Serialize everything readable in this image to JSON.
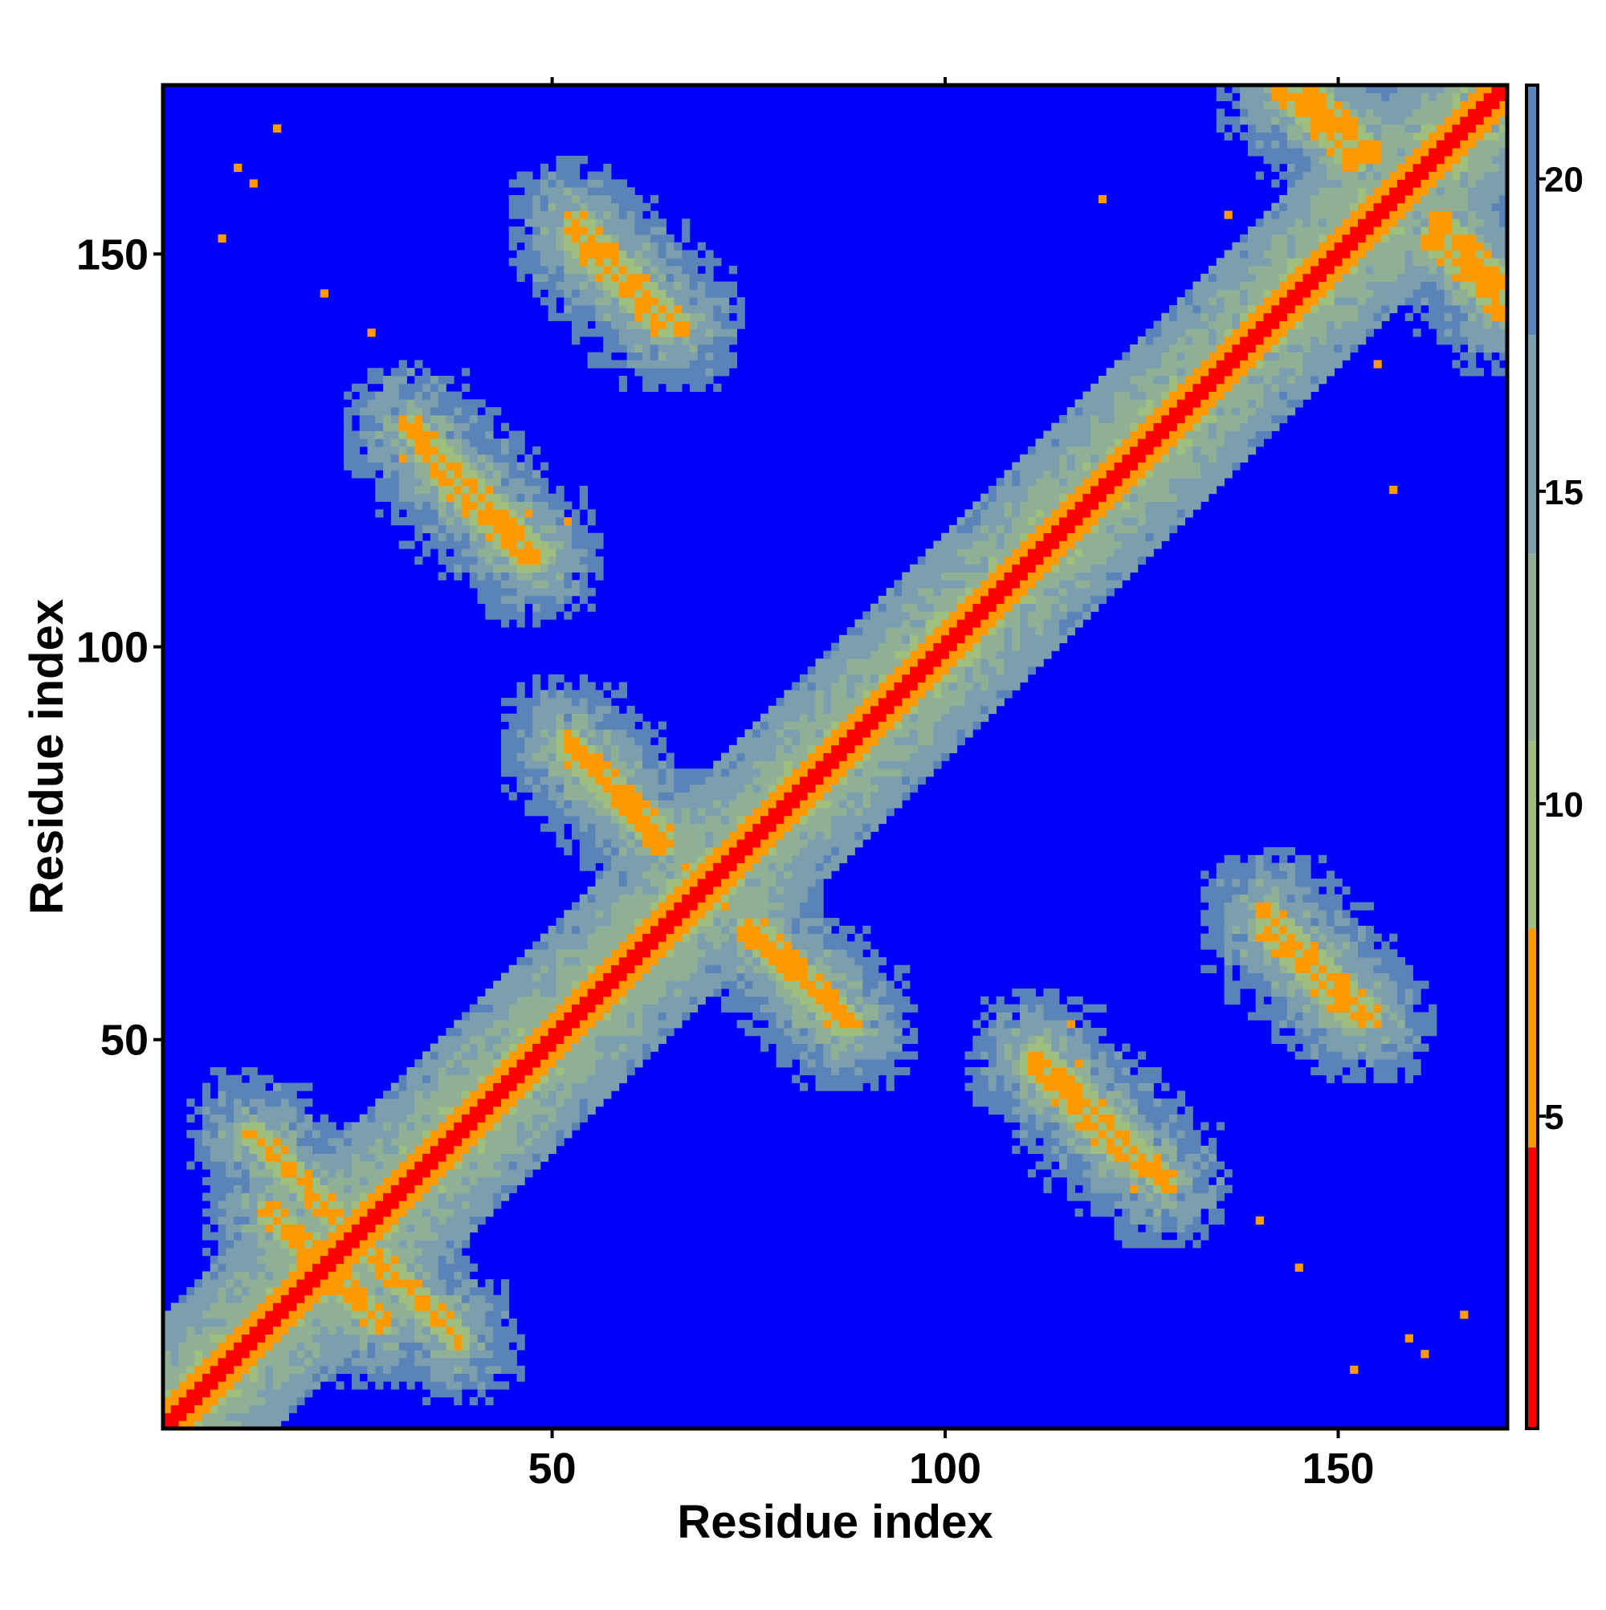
{
  "chart_data": {
    "type": "heatmap",
    "title": "",
    "xlabel": "Residue index",
    "ylabel": "Residue index",
    "n_residues": 171,
    "xlim": [
      1,
      171
    ],
    "ylim": [
      1,
      171
    ],
    "x_ticks": [
      50,
      100,
      150
    ],
    "y_ticks": [
      50,
      100,
      150
    ],
    "colorbar": {
      "range": [
        0,
        21.5
      ],
      "ticks": [
        5,
        10,
        15,
        20
      ],
      "bands": [
        {
          "from": 0,
          "to": 4.5,
          "color": "#ff0000"
        },
        {
          "from": 4.5,
          "to": 8,
          "color": "#ff9900"
        },
        {
          "from": 8,
          "to": 11,
          "color": "#9fbf7f"
        },
        {
          "from": 11,
          "to": 14,
          "color": "#8fb096"
        },
        {
          "from": 14,
          "to": 17.5,
          "color": "#7b9fae"
        },
        {
          "from": 17.5,
          "to": 21.5,
          "color": "#5a84b8"
        }
      ]
    },
    "background_color": "#0000ff",
    "description_of_values": "Pairwise residue distance (contact map); symmetric about diagonal",
    "contact_bands": [
      {
        "i": [
          1,
          171
        ],
        "j_offset": 0,
        "kind": "diagonal",
        "width": 6
      },
      {
        "i": [
          14,
          26
        ],
        "j_start": 28,
        "kind": "antiparallel"
      },
      {
        "i": [
          28,
          38
        ],
        "j_start": 22,
        "kind": "antiparallel"
      },
      {
        "i": [
          52,
          64
        ],
        "j_start": 87,
        "kind": "antiparallel"
      },
      {
        "i": [
          53,
          66
        ],
        "j_start": 154,
        "kind": "antiparallel"
      },
      {
        "i": [
          36,
          47
        ],
        "j_start": 122,
        "kind": "antiparallel"
      },
      {
        "i": [
          76,
          88
        ],
        "j_start": 64,
        "kind": "antiparallel"
      },
      {
        "i": [
          112,
          128
        ],
        "j_start": 48,
        "kind": "antiparallel"
      },
      {
        "i": [
          141,
          152
        ],
        "j_start": 64,
        "kind": "antiparallel"
      },
      {
        "i": [
          143,
          152
        ],
        "j_start": 171,
        "kind": "antiparallel"
      },
      {
        "i": [
          163,
          171
        ],
        "j_start": 154,
        "kind": "antiparallel"
      },
      {
        "i": [
          96,
          110
        ],
        "j_start": 96,
        "kind": "parallel"
      }
    ],
    "orange_spots": [
      [
        159,
        12
      ],
      [
        161,
        10
      ],
      [
        27,
        140
      ],
      [
        21,
        145
      ],
      [
        8,
        152
      ],
      [
        15,
        166
      ],
      [
        47,
        117
      ],
      [
        52,
        116
      ],
      [
        100,
        103
      ],
      [
        104,
        107
      ],
      [
        48,
        51
      ],
      [
        67,
        72
      ],
      [
        120,
        157
      ],
      [
        155,
        136
      ],
      [
        124,
        31
      ]
    ]
  }
}
